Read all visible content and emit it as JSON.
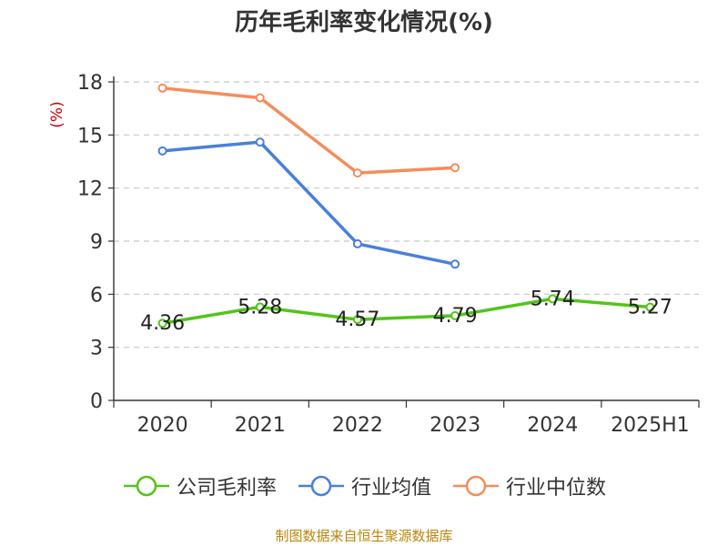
{
  "chart_data": {
    "type": "line",
    "title": "历年毛利率变化情况(%)",
    "ylabel": "(%)",
    "xlabel": "",
    "categories": [
      "2020",
      "2021",
      "2022",
      "2023",
      "2024",
      "2025H1"
    ],
    "ylim": [
      0,
      18
    ],
    "yticks": [
      0,
      3,
      6,
      9,
      12,
      15,
      18
    ],
    "grid": true,
    "legend_position": "bottom",
    "series": [
      {
        "name": "公司毛利率",
        "color": "#52c41a",
        "values": [
          4.36,
          5.28,
          4.57,
          4.79,
          5.74,
          5.27
        ],
        "labels": [
          "4.36",
          "5.28",
          "4.57",
          "4.79",
          "5.74",
          "5.27"
        ]
      },
      {
        "name": "行业均值",
        "color": "#4a7fdb",
        "values": [
          14.1,
          14.6,
          8.85,
          7.7,
          null,
          null
        ]
      },
      {
        "name": "行业中位数",
        "color": "#f58d5b",
        "values": [
          17.65,
          17.1,
          12.85,
          13.15,
          null,
          null
        ]
      }
    ]
  },
  "source_note": "制图数据来自恒生聚源数据库"
}
